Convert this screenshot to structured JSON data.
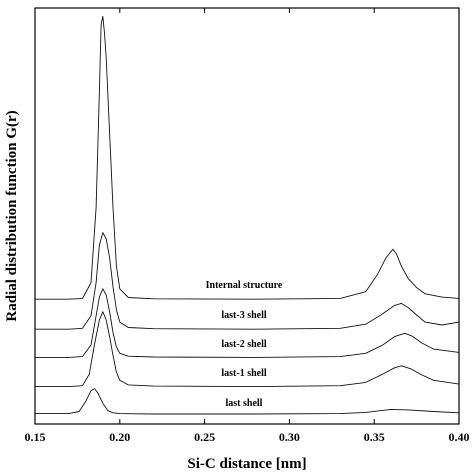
{
  "chart_data": {
    "type": "line",
    "title": "",
    "xlabel": "Si-C distance [nm]",
    "ylabel": "Radial distribution function G(r)",
    "xlim": [
      0.15,
      0.4
    ],
    "ylim": [
      0,
      1
    ],
    "grid": false,
    "x_ticks": [
      "0.15",
      "0.20",
      "0.25",
      "0.30",
      "0.35",
      "0.40"
    ],
    "x_tick_values": [
      0.15,
      0.2,
      0.25,
      0.3,
      0.35,
      0.4
    ],
    "y_ticks_shown": false,
    "series": [
      {
        "name": "Internal structure",
        "x": [
          0.15,
          0.17,
          0.178,
          0.183,
          0.186,
          0.188,
          0.189,
          0.19,
          0.191,
          0.192,
          0.194,
          0.196,
          0.198,
          0.2,
          0.205,
          0.22,
          0.28,
          0.33,
          0.345,
          0.352,
          0.357,
          0.361,
          0.363,
          0.366,
          0.37,
          0.375,
          0.38,
          0.39,
          0.4
        ],
        "y": [
          0.3,
          0.3,
          0.302,
          0.34,
          0.52,
          0.8,
          0.96,
          0.98,
          0.94,
          0.88,
          0.7,
          0.52,
          0.38,
          0.325,
          0.304,
          0.301,
          0.3,
          0.302,
          0.318,
          0.36,
          0.4,
          0.42,
          0.41,
          0.38,
          0.35,
          0.328,
          0.313,
          0.305,
          0.302
        ]
      },
      {
        "name": "last-3 shell",
        "x": [
          0.15,
          0.17,
          0.178,
          0.183,
          0.186,
          0.188,
          0.19,
          0.192,
          0.194,
          0.196,
          0.198,
          0.2,
          0.205,
          0.22,
          0.28,
          0.33,
          0.345,
          0.355,
          0.362,
          0.366,
          0.37,
          0.375,
          0.38,
          0.39,
          0.4
        ],
        "y": [
          0.228,
          0.228,
          0.23,
          0.26,
          0.34,
          0.43,
          0.46,
          0.445,
          0.4,
          0.33,
          0.275,
          0.245,
          0.232,
          0.229,
          0.228,
          0.23,
          0.24,
          0.265,
          0.285,
          0.29,
          0.28,
          0.262,
          0.245,
          0.238,
          0.245
        ]
      },
      {
        "name": "last-2 shell",
        "x": [
          0.15,
          0.17,
          0.178,
          0.183,
          0.186,
          0.188,
          0.19,
          0.192,
          0.194,
          0.196,
          0.198,
          0.2,
          0.205,
          0.22,
          0.28,
          0.33,
          0.345,
          0.355,
          0.362,
          0.368,
          0.372,
          0.378,
          0.385,
          0.4
        ],
        "y": [
          0.16,
          0.16,
          0.162,
          0.19,
          0.26,
          0.305,
          0.325,
          0.31,
          0.27,
          0.22,
          0.185,
          0.17,
          0.163,
          0.161,
          0.16,
          0.162,
          0.17,
          0.19,
          0.21,
          0.218,
          0.212,
          0.195,
          0.18,
          0.172
        ]
      },
      {
        "name": "last-1 shell",
        "x": [
          0.15,
          0.17,
          0.178,
          0.182,
          0.185,
          0.188,
          0.19,
          0.192,
          0.194,
          0.196,
          0.198,
          0.2,
          0.205,
          0.22,
          0.28,
          0.33,
          0.345,
          0.355,
          0.362,
          0.366,
          0.372,
          0.378,
          0.385,
          0.4
        ],
        "y": [
          0.09,
          0.09,
          0.092,
          0.12,
          0.19,
          0.25,
          0.27,
          0.25,
          0.21,
          0.165,
          0.125,
          0.105,
          0.094,
          0.091,
          0.09,
          0.092,
          0.1,
          0.12,
          0.135,
          0.14,
          0.132,
          0.118,
          0.105,
          0.096
        ]
      },
      {
        "name": "last shell",
        "x": [
          0.15,
          0.17,
          0.176,
          0.18,
          0.183,
          0.185,
          0.187,
          0.19,
          0.193,
          0.196,
          0.2,
          0.22,
          0.28,
          0.33,
          0.345,
          0.36,
          0.37,
          0.385,
          0.4
        ],
        "y": [
          0.025,
          0.025,
          0.03,
          0.055,
          0.08,
          0.085,
          0.075,
          0.05,
          0.032,
          0.027,
          0.025,
          0.024,
          0.024,
          0.025,
          0.028,
          0.035,
          0.034,
          0.03,
          0.027
        ]
      }
    ],
    "annotations": [
      "Internal structure",
      "last-3 shell",
      "last-2 shell",
      "last-1 shell",
      "last shell"
    ]
  }
}
